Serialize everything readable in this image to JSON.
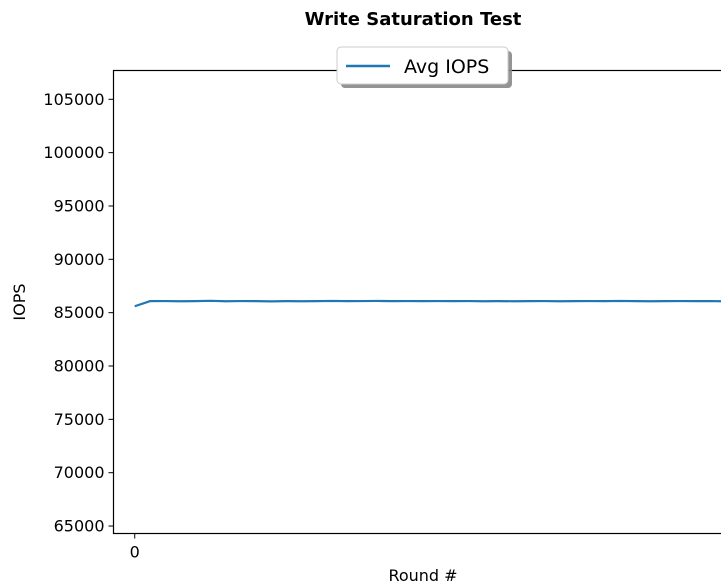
{
  "chart_data": {
    "type": "line",
    "title": "Write Saturation Test",
    "xlabel": "Round #",
    "ylabel": "IOPS",
    "xlim": [
      -1.4,
      40.8
    ],
    "ylim": [
      64300,
      107700
    ],
    "xticks": [
      0
    ],
    "yticks": [
      65000,
      70000,
      75000,
      80000,
      85000,
      90000,
      95000,
      100000,
      105000
    ],
    "legend": {
      "placement": "top-center",
      "entries": [
        "Avg IOPS"
      ]
    },
    "grid": false,
    "series": [
      {
        "name": "Avg IOPS",
        "color": "#1f77b4",
        "x": [
          0,
          1,
          2,
          3,
          4,
          5,
          6,
          7,
          8,
          9,
          10,
          11,
          12,
          13,
          14,
          15,
          16,
          17,
          18,
          19,
          20,
          21,
          22,
          23,
          24,
          25,
          26,
          27,
          28,
          29,
          30,
          31,
          32,
          33,
          34,
          35,
          36,
          37,
          38,
          39
        ],
        "y": [
          85600,
          86080,
          86090,
          86070,
          86080,
          86110,
          86070,
          86090,
          86080,
          86060,
          86080,
          86070,
          86080,
          86100,
          86080,
          86090,
          86100,
          86080,
          86090,
          86080,
          86090,
          86080,
          86090,
          86070,
          86080,
          86070,
          86080,
          86090,
          86070,
          86080,
          86090,
          86080,
          86100,
          86080,
          86070,
          86080,
          86090,
          86080,
          86090,
          86060
        ]
      }
    ]
  }
}
